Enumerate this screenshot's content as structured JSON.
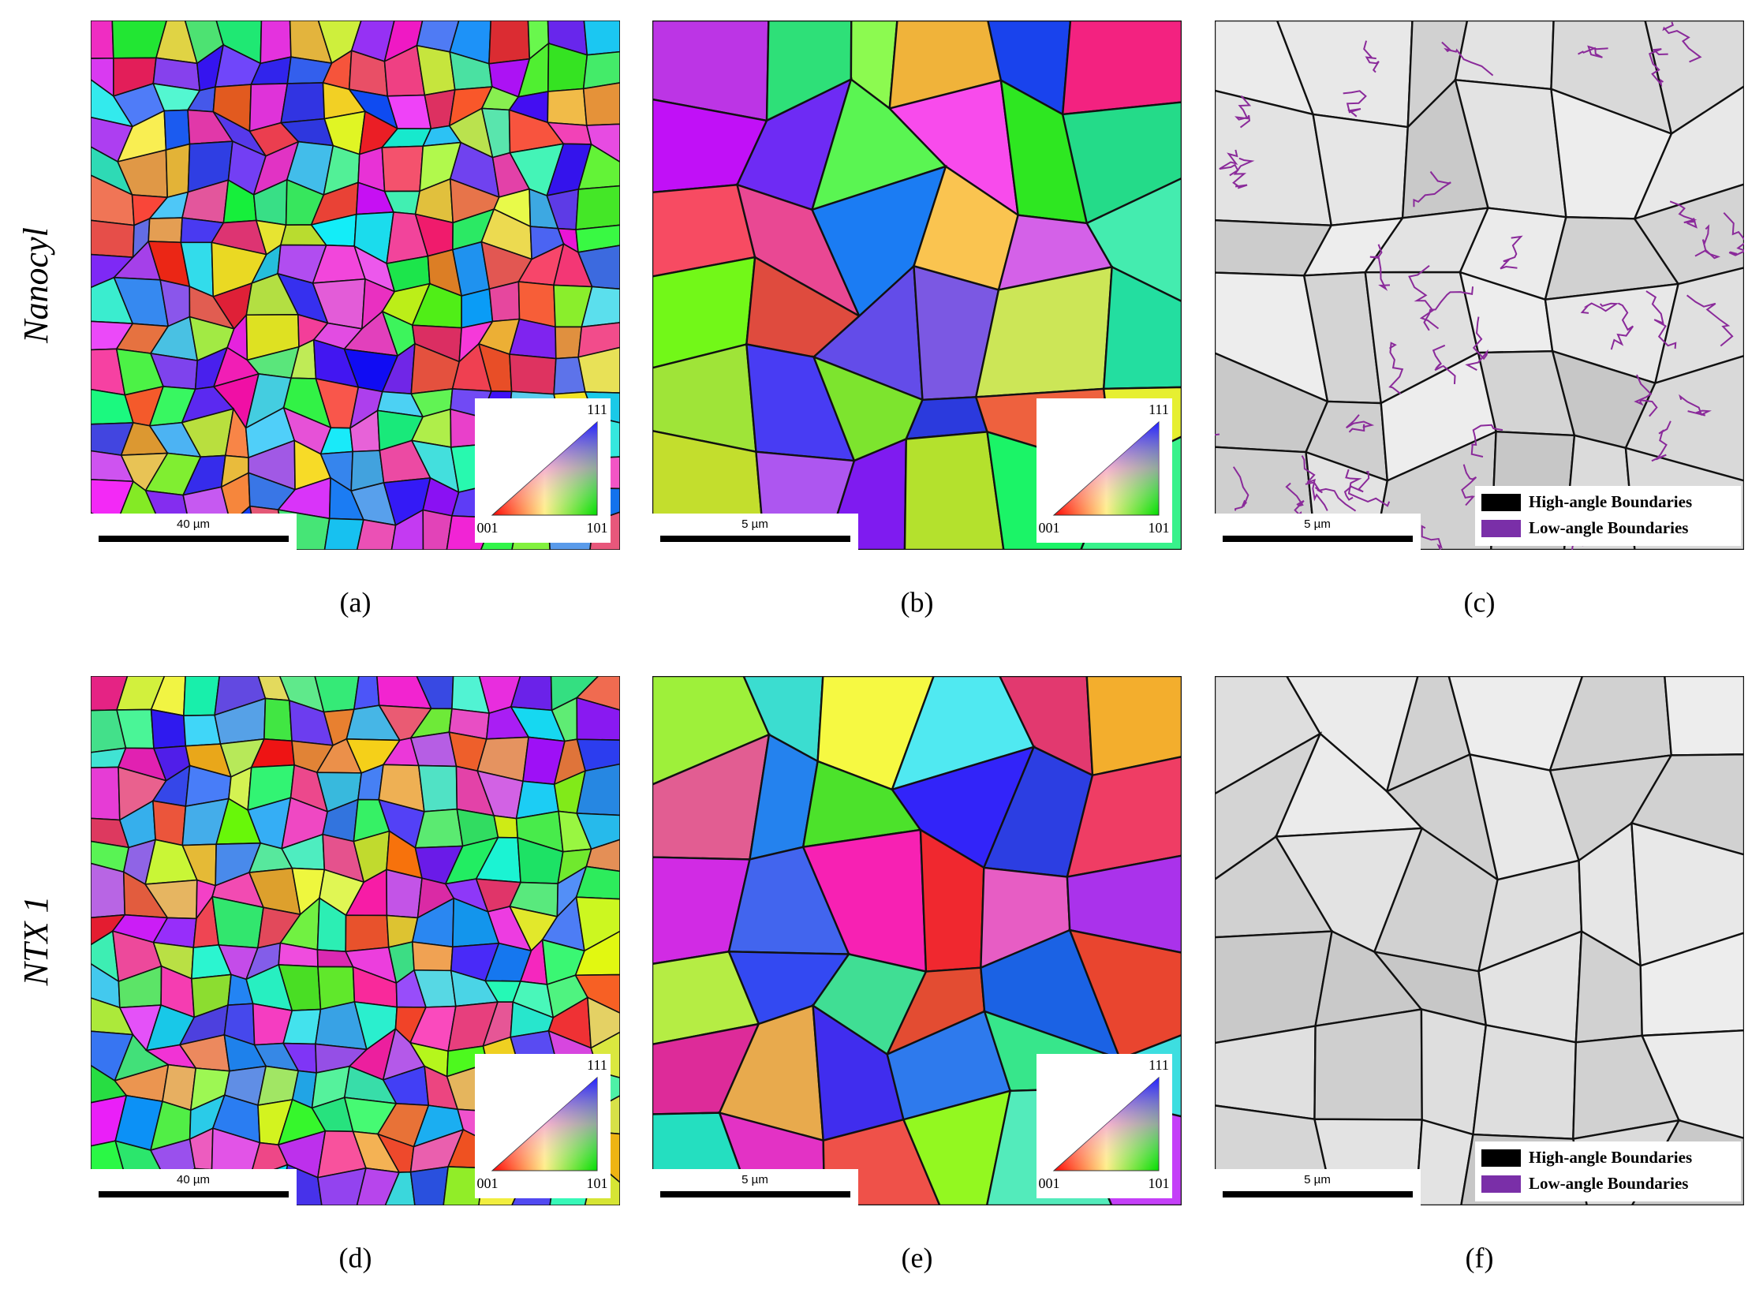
{
  "rows": [
    {
      "label": "Nanocyl",
      "panels": [
        {
          "caption": "(a)",
          "scale_bar": "40 µm",
          "ipf_key": {
            "top": "111",
            "left": "001",
            "right": "101"
          }
        },
        {
          "caption": "(b)",
          "scale_bar": "5 µm",
          "ipf_key": {
            "top": "111",
            "left": "001",
            "right": "101"
          }
        },
        {
          "caption": "(c)",
          "scale_bar": "5 µm",
          "legend": [
            "High-angle Boundaries",
            "Low-angle Boundaries"
          ]
        }
      ]
    },
    {
      "label": "NTX 1",
      "panels": [
        {
          "caption": "(d)",
          "scale_bar": "40 µm",
          "ipf_key": {
            "top": "111",
            "left": "001",
            "right": "101"
          }
        },
        {
          "caption": "(e)",
          "scale_bar": "5 µm",
          "ipf_key": {
            "top": "111",
            "left": "001",
            "right": "101"
          }
        },
        {
          "caption": "(f)",
          "scale_bar": "5 µm",
          "legend": [
            "High-angle Boundaries",
            "Low-angle Boundaries"
          ]
        }
      ]
    }
  ]
}
